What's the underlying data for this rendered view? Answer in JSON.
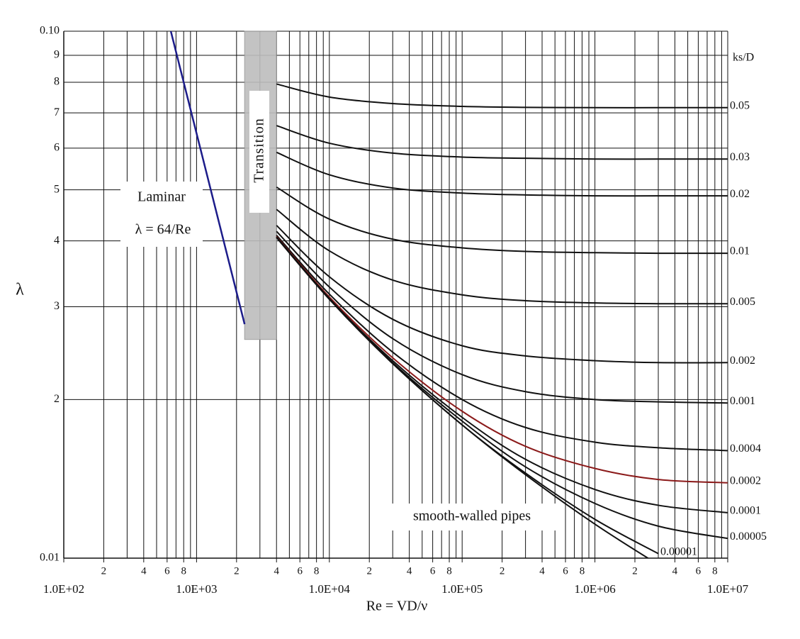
{
  "chart_data": {
    "type": "line",
    "x_label": "Re = VD/ν",
    "y_label": "λ",
    "log_x": true,
    "log_y": true,
    "grid": true,
    "xlim": [
      100,
      10000000
    ],
    "ylim": [
      0.01,
      0.1
    ],
    "xticks": [
      {
        "value": 100,
        "label": "1.0E+02"
      },
      {
        "value": 200,
        "label": "2"
      },
      {
        "value": 400,
        "label": "4"
      },
      {
        "value": 600,
        "label": "6"
      },
      {
        "value": 800,
        "label": "8"
      },
      {
        "value": 1000,
        "label": "1.0E+03"
      },
      {
        "value": 2000,
        "label": "2"
      },
      {
        "value": 4000,
        "label": "4"
      },
      {
        "value": 6000,
        "label": "6"
      },
      {
        "value": 8000,
        "label": "8"
      },
      {
        "value": 10000,
        "label": "1.0E+04"
      },
      {
        "value": 20000,
        "label": "2"
      },
      {
        "value": 40000,
        "label": "4"
      },
      {
        "value": 60000,
        "label": "6"
      },
      {
        "value": 80000,
        "label": "8"
      },
      {
        "value": 100000,
        "label": "1.0E+05"
      },
      {
        "value": 200000,
        "label": "2"
      },
      {
        "value": 400000,
        "label": "4"
      },
      {
        "value": 600000,
        "label": "6"
      },
      {
        "value": 800000,
        "label": "8"
      },
      {
        "value": 1000000,
        "label": "1.0E+06"
      },
      {
        "value": 2000000,
        "label": "2"
      },
      {
        "value": 4000000,
        "label": "4"
      },
      {
        "value": 6000000,
        "label": "6"
      },
      {
        "value": 8000000,
        "label": "8"
      },
      {
        "value": 10000000,
        "label": "1.0E+07"
      }
    ],
    "x_minor_grid": [
      300,
      500,
      700,
      900,
      3000,
      5000,
      7000,
      9000,
      30000,
      50000,
      70000,
      90000,
      300000,
      500000,
      700000,
      900000,
      3000000,
      5000000,
      7000000,
      9000000
    ],
    "yticks": [
      0.01,
      {
        "value": 0.02,
        "label": "2"
      },
      {
        "value": 0.03,
        "label": "3"
      },
      {
        "value": 0.04,
        "label": "4"
      },
      {
        "value": 0.05,
        "label": "5"
      },
      {
        "value": 0.06,
        "label": "6"
      },
      {
        "value": 0.07,
        "label": "7"
      },
      {
        "value": 0.08,
        "label": "8"
      },
      {
        "value": 0.09,
        "label": "9"
      },
      {
        "value": 0.1,
        "label": "0.10"
      }
    ],
    "legend_title": "ks/D",
    "laminar_formula": "λ = 64/Re",
    "transition_band": {
      "label": "Transition",
      "x": [
        2300,
        4000
      ],
      "y": [
        0.026,
        0.1
      ],
      "color": "#bdbdbd"
    },
    "x": [
      4000,
      10000,
      30000,
      100000,
      300000,
      1000000,
      3000000,
      10000000
    ],
    "series": [
      {
        "name": "0.05",
        "color": "#111111",
        "values": [
          0.0794,
          0.075,
          0.0729,
          0.072,
          0.0717,
          0.0716,
          0.0716,
          0.0716
        ]
      },
      {
        "name": "0.03",
        "color": "#111111",
        "values": [
          0.0662,
          0.0613,
          0.0587,
          0.0577,
          0.0574,
          0.0572,
          0.0572,
          0.0572
        ]
      },
      {
        "name": "0.02",
        "color": "#111111",
        "values": [
          0.0589,
          0.0534,
          0.0504,
          0.0493,
          0.0489,
          0.0487,
          0.0487,
          0.0487
        ]
      },
      {
        "name": "0.01",
        "color": "#111111",
        "values": [
          0.0506,
          0.044,
          0.0403,
          0.0388,
          0.0382,
          0.038,
          0.0379,
          0.0379
        ]
      },
      {
        "name": "0.005",
        "color": "#111111",
        "values": [
          0.0459,
          0.0383,
          0.0337,
          0.0316,
          0.0308,
          0.0305,
          0.0304,
          0.0304
        ]
      },
      {
        "name": "0.002",
        "color": "#111111",
        "values": [
          0.0428,
          0.0342,
          0.0284,
          0.0253,
          0.0242,
          0.0237,
          0.0235,
          0.0235
        ]
      },
      {
        "name": "0.001",
        "color": "#111111",
        "values": [
          0.0417,
          0.0327,
          0.0261,
          0.0223,
          0.0207,
          0.02,
          0.0198,
          0.0197
        ]
      },
      {
        "name": "0.0004",
        "color": "#111111",
        "values": [
          0.041,
          0.0317,
          0.0246,
          0.02,
          0.0177,
          0.0166,
          0.0162,
          0.016
        ]
      },
      {
        "name": "0.0002",
        "color": "#8b1a1a",
        "values": [
          0.0408,
          0.0313,
          0.024,
          0.019,
          0.0163,
          0.0148,
          0.0141,
          0.0139
        ]
      },
      {
        "name": "0.0001",
        "color": "#111111",
        "values": [
          0.0407,
          0.0311,
          0.0237,
          0.0185,
          0.0154,
          0.0135,
          0.0126,
          0.0122
        ]
      },
      {
        "name": "0.00005",
        "color": "#111111",
        "values": [
          0.0406,
          0.0311,
          0.0235,
          0.0182,
          0.0149,
          0.0127,
          0.0115,
          0.0109
        ]
      },
      {
        "name": "0.00001",
        "color": "#111111",
        "values": [
          0.0406,
          0.031,
          0.0234,
          0.0179,
          0.0145,
          0.01185,
          0.0102,
          null
        ]
      },
      {
        "name": "smooth-walled pipes",
        "color": "#111111",
        "values": [
          0.0406,
          0.031,
          0.0234,
          0.0179,
          0.0144,
          0.0116,
          0.00972,
          null
        ]
      },
      {
        "name": "Laminar",
        "color": "#1c1c8a",
        "x": [
          640,
          2300
        ],
        "values": [
          0.1,
          0.0278
        ]
      }
    ]
  }
}
